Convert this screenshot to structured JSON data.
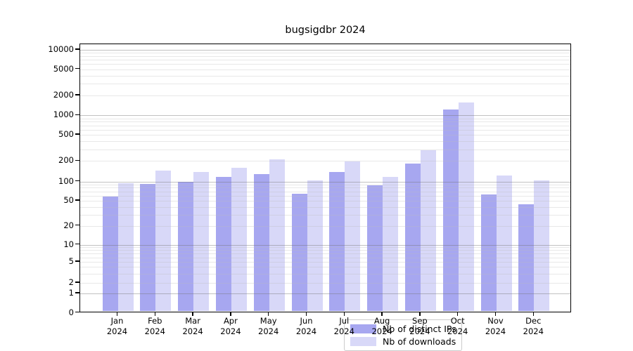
{
  "title": "bugsigdbr 2024",
  "legend": {
    "items": [
      {
        "label": "Nb of distinct IPs",
        "color": "#a7a7f0"
      },
      {
        "label": "Nb of downloads",
        "color": "#d8d8f8"
      }
    ]
  },
  "axes": {
    "y_ticks": [
      0,
      1,
      2,
      5,
      10,
      20,
      50,
      100,
      200,
      500,
      1000,
      2000,
      5000,
      10000
    ],
    "y_major_gridlines": [
      1,
      10,
      100,
      1000,
      10000
    ],
    "x_tick_labels": [
      "Jan 2024",
      "Feb 2024",
      "Mar 2024",
      "Apr 2024",
      "May 2024",
      "Jun 2024",
      "Jul 2024",
      "Aug 2024",
      "Sep 2024",
      "Oct 2024",
      "Nov 2024",
      "Dec 2024"
    ]
  },
  "chart_data": {
    "type": "bar",
    "title": "bugsigdbr 2024",
    "categories": [
      "Jan 2024",
      "Feb 2024",
      "Mar 2024",
      "Apr 2024",
      "May 2024",
      "Jun 2024",
      "Jul 2024",
      "Aug 2024",
      "Sep 2024",
      "Oct 2024",
      "Nov 2024",
      "Dec 2024"
    ],
    "series": [
      {
        "name": "Nb of distinct IPs",
        "color": "#a7a7f0",
        "values": [
          58,
          92,
          100,
          118,
          127,
          65,
          137,
          86,
          183,
          1220,
          62,
          44
        ]
      },
      {
        "name": "Nb of downloads",
        "color": "#d8d8f8",
        "values": [
          95,
          144,
          137,
          157,
          212,
          103,
          197,
          118,
          291,
          1560,
          122,
          104
        ]
      }
    ],
    "xlabel": "",
    "ylabel": "",
    "yscale": "symlog",
    "ylim": [
      0,
      10000
    ],
    "y_ticks": [
      0,
      1,
      2,
      5,
      10,
      20,
      50,
      100,
      200,
      500,
      1000,
      2000,
      5000,
      10000
    ],
    "grid": "horizontal, log minor + major",
    "legend_position": "lower center"
  }
}
